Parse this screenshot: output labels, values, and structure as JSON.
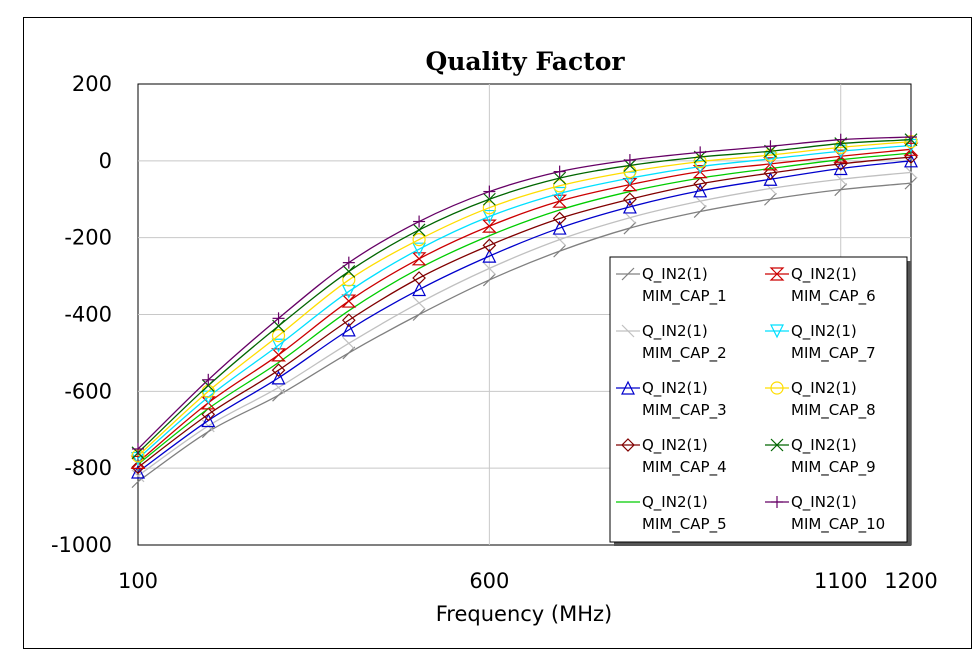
{
  "chart_data": {
    "type": "line",
    "title": "Quality Factor",
    "xlabel": "Frequency (MHz)",
    "ylabel": "",
    "xlim": [
      100,
      1200
    ],
    "ylim": [
      -1000,
      200
    ],
    "x_ticks": [
      100,
      600,
      1100,
      1200
    ],
    "y_ticks": [
      200,
      0,
      -200,
      -400,
      -600,
      -800,
      -1000
    ],
    "grid": true,
    "legend_position": "right",
    "x": [
      100,
      200,
      300,
      400,
      500,
      600,
      700,
      800,
      900,
      1000,
      1100,
      1200
    ],
    "series": [
      {
        "name": "Q_IN2(1) MIM_CAP_1",
        "color": "#808080",
        "marker": "slash",
        "values": [
          -835,
          -705,
          -610,
          -500,
          -400,
          -310,
          -235,
          -175,
          -132,
          -100,
          -75,
          -58
        ]
      },
      {
        "name": "Q_IN2(1) MIM_CAP_2",
        "color": "#c0c0c0",
        "marker": "backslash",
        "values": [
          -820,
          -690,
          -590,
          -475,
          -370,
          -280,
          -205,
          -148,
          -105,
          -72,
          -48,
          -30
        ]
      },
      {
        "name": "Q_IN2(1) MIM_CAP_3",
        "color": "#0000cc",
        "marker": "triangle-up",
        "values": [
          -810,
          -676,
          -565,
          -440,
          -335,
          -248,
          -175,
          -120,
          -78,
          -48,
          -20,
          0
        ]
      },
      {
        "name": "Q_IN2(1) MIM_CAP_4",
        "color": "#800000",
        "marker": "diamond",
        "values": [
          -798,
          -660,
          -545,
          -415,
          -305,
          -220,
          -150,
          -100,
          -60,
          -32,
          -8,
          10
        ]
      },
      {
        "name": "Q_IN2(1) MIM_CAP_5",
        "color": "#00cc00",
        "marker": "none",
        "values": [
          -790,
          -645,
          -525,
          -390,
          -280,
          -195,
          -128,
          -80,
          -45,
          -20,
          3,
          20
        ]
      },
      {
        "name": "Q_IN2(1) MIM_CAP_6",
        "color": "#cc0000",
        "marker": "hourglass",
        "values": [
          -785,
          -630,
          -505,
          -365,
          -255,
          -170,
          -105,
          -62,
          -28,
          -8,
          12,
          30
        ]
      },
      {
        "name": "Q_IN2(1) MIM_CAP_7",
        "color": "#00e0ff",
        "marker": "triangle-down",
        "values": [
          -775,
          -615,
          -480,
          -340,
          -230,
          -145,
          -85,
          -45,
          -15,
          5,
          25,
          40
        ]
      },
      {
        "name": "Q_IN2(1) MIM_CAP_8",
        "color": "#ffdd00",
        "marker": "circle",
        "values": [
          -768,
          -600,
          -455,
          -310,
          -205,
          -122,
          -65,
          -28,
          -2,
          15,
          35,
          50
        ]
      },
      {
        "name": "Q_IN2(1) MIM_CAP_9",
        "color": "#006600",
        "marker": "x",
        "values": [
          -760,
          -585,
          -430,
          -288,
          -180,
          -100,
          -45,
          -12,
          10,
          25,
          45,
          55
        ]
      },
      {
        "name": "Q_IN2(1) MIM_CAP_10",
        "color": "#660066",
        "marker": "plus",
        "values": [
          -750,
          -570,
          -410,
          -265,
          -158,
          -80,
          -28,
          2,
          22,
          38,
          55,
          62
        ]
      }
    ]
  }
}
